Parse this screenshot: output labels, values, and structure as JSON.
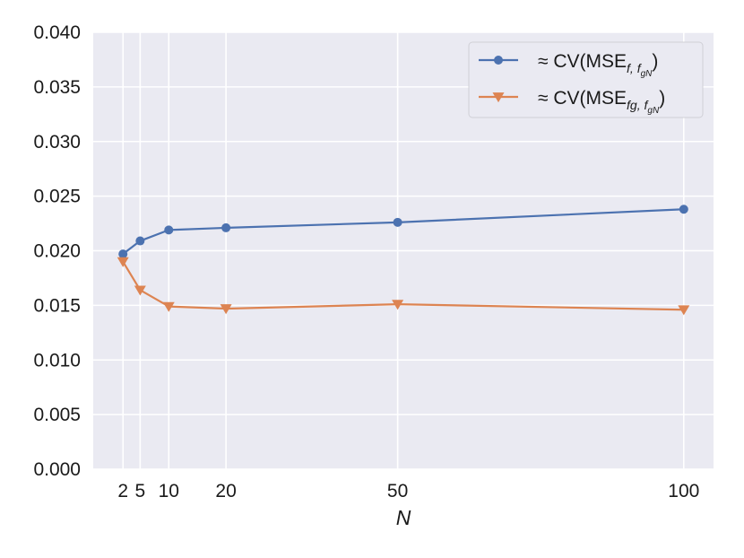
{
  "chart_data": {
    "type": "line",
    "xlabel": "N",
    "ylabel": "",
    "title": "",
    "x": [
      2,
      5,
      10,
      20,
      50,
      100
    ],
    "xticks": [
      "2",
      "5",
      "10",
      "20",
      "50",
      "100"
    ],
    "xlim": [
      -3.2,
      105.2
    ],
    "ylim": [
      0,
      0.04
    ],
    "yticks": [
      "0.000",
      "0.005",
      "0.010",
      "0.015",
      "0.020",
      "0.025",
      "0.030",
      "0.035",
      "0.040"
    ],
    "grid": true,
    "legend_position": "top-right",
    "series": [
      {
        "legend": {
          "prefix": "≈ CV(MSE",
          "sub": "f, f",
          "subsub": "gN",
          "suffix": ")"
        },
        "values": [
          0.0197,
          0.0209,
          0.0219,
          0.0221,
          0.0226,
          0.0238
        ],
        "color": "#4c72b0",
        "marker": "circle"
      },
      {
        "legend": {
          "prefix": "≈ CV(MSE",
          "sub": "fg, f",
          "subsub": "gN",
          "suffix": ")"
        },
        "values": [
          0.019,
          0.0164,
          0.0149,
          0.0147,
          0.0151,
          0.0146
        ],
        "color": "#dd8452",
        "marker": "triangle-down"
      }
    ],
    "colors": {
      "plot_background": "#eaeaf2",
      "grid": "#ffffff"
    }
  }
}
